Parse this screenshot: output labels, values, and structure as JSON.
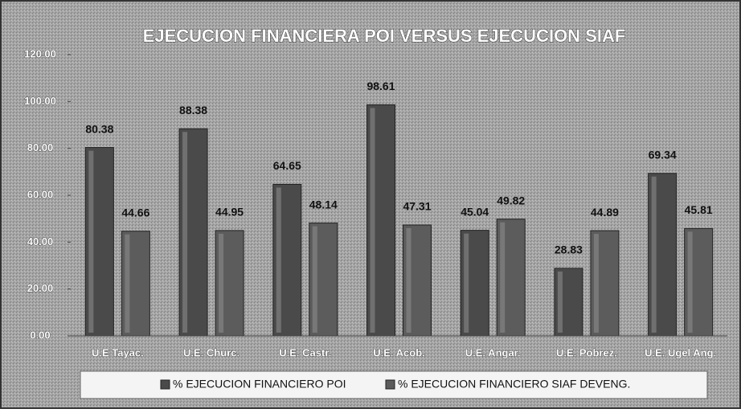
{
  "chart_data": {
    "type": "bar",
    "title": "EJECUCION FINANCIERA POI VERSUS EJECUCION SIAF",
    "categories": [
      "U.E Tayac.",
      "U.E. Churc.",
      "U.E. Castr.",
      "U.E. Acob.",
      "U.E. Angar.",
      "U.E. Pobrez.",
      "U.E. Ugel Ang."
    ],
    "series": [
      {
        "name": "% EJECUCION FINANCIERO POI",
        "color": "#4a4a4a",
        "values": [
          80.38,
          88.38,
          64.65,
          98.61,
          45.04,
          28.83,
          69.34
        ]
      },
      {
        "name": "% EJECUCION FINANCIERO SIAF DEVENG.",
        "color": "#5c5c5c",
        "values": [
          44.66,
          44.95,
          48.14,
          47.31,
          49.82,
          44.89,
          45.81
        ]
      }
    ],
    "ylim": [
      0,
      120
    ],
    "yticks": [
      {
        "value": 0,
        "label": "0.00"
      },
      {
        "value": 20,
        "label": "20.00"
      },
      {
        "value": 40,
        "label": "40.00"
      },
      {
        "value": 60,
        "label": "60.00"
      },
      {
        "value": 80,
        "label": "80.00"
      },
      {
        "value": 100,
        "label": "100.00"
      },
      {
        "value": 120,
        "label": "120.00"
      }
    ],
    "legend": "bottom"
  }
}
